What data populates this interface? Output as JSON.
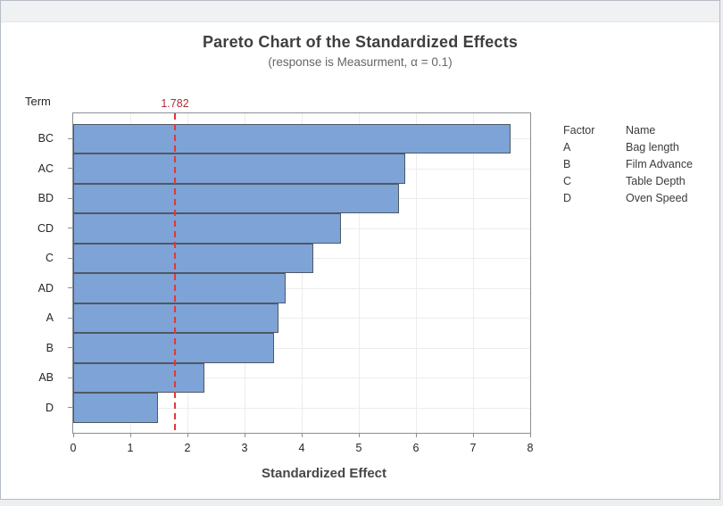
{
  "window": {
    "type": "minitab-graph-window"
  },
  "chart_data": {
    "type": "bar",
    "orientation": "horizontal",
    "title": "Pareto Chart of the Standardized Effects",
    "subtitle": "(response is Measurment, α = 0.1)",
    "term_axis_label": "Term",
    "xlabel": "Standardized Effect",
    "categories": [
      "BC",
      "AC",
      "BD",
      "CD",
      "C",
      "AD",
      "A",
      "B",
      "AB",
      "D"
    ],
    "values": [
      7.65,
      5.82,
      5.7,
      4.68,
      4.21,
      3.72,
      3.59,
      3.51,
      2.3,
      1.49
    ],
    "xlim": [
      0,
      8
    ],
    "x_ticks": [
      "0",
      "1",
      "2",
      "3",
      "4",
      "5",
      "6",
      "7",
      "8"
    ],
    "grid": true,
    "reference_line": {
      "value": 1.782,
      "label": "1.782"
    },
    "colors": {
      "bar_fill": "#7ea3d6",
      "bar_border": "#4e5964",
      "reference_line": "#e0393b",
      "reference_label": "#b02a33",
      "gridline": "#ececec",
      "frame": "#8a8f94"
    }
  },
  "legend": {
    "header": {
      "factor": "Factor",
      "name": "Name"
    },
    "rows": [
      {
        "factor": "A",
        "name": "Bag length"
      },
      {
        "factor": "B",
        "name": "Film Advance"
      },
      {
        "factor": "C",
        "name": "Table Depth"
      },
      {
        "factor": "D",
        "name": "Oven Speed"
      }
    ]
  }
}
